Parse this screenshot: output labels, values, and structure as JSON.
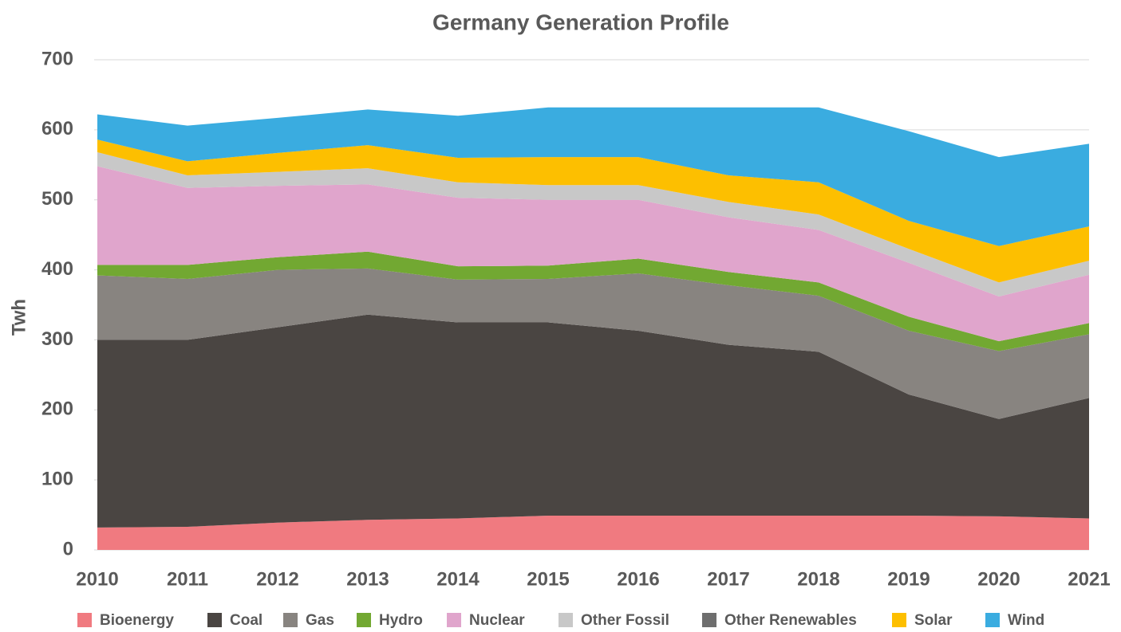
{
  "chart_data": {
    "type": "stacked_area",
    "title": "Germany Generation Profile",
    "y_label": "Twh",
    "categories": [
      "2010",
      "2011",
      "2012",
      "2013",
      "2014",
      "2015",
      "2016",
      "2017",
      "2018",
      "2019",
      "2020",
      "2021"
    ],
    "ylim": [
      0,
      700
    ],
    "yticks": [
      0,
      100,
      200,
      300,
      400,
      500,
      600,
      700
    ],
    "grid": true,
    "legend": "bottom",
    "series": [
      {
        "name": "Bioenergy",
        "color": "#f07a80",
        "values": [
          32,
          33,
          39,
          43,
          45,
          49,
          49,
          49,
          49,
          49,
          48,
          45
        ]
      },
      {
        "name": "Coal",
        "color": "#4a4542",
        "values": [
          268,
          267,
          279,
          293,
          280,
          276,
          264,
          244,
          234,
          173,
          139,
          172
        ]
      },
      {
        "name": "Gas",
        "color": "#888480",
        "values": [
          92,
          87,
          82,
          66,
          61,
          62,
          82,
          85,
          80,
          91,
          97,
          91
        ]
      },
      {
        "name": "Hydro",
        "color": "#72a832",
        "values": [
          15,
          20,
          18,
          24,
          19,
          19,
          21,
          19,
          19,
          20,
          14,
          16
        ]
      },
      {
        "name": "Nuclear",
        "color": "#e0a5cc",
        "values": [
          141,
          110,
          102,
          96,
          98,
          94,
          84,
          78,
          75,
          77,
          64,
          69
        ]
      },
      {
        "name": "Other Fossil",
        "color": "#c8c8c8",
        "values": [
          20,
          18,
          20,
          23,
          22,
          21,
          21,
          22,
          22,
          20,
          20,
          20
        ]
      },
      {
        "name": "Other Renewables",
        "color": "#6e6e6e",
        "values": [
          0,
          0,
          0,
          0,
          0,
          0,
          0,
          0,
          0,
          0,
          0,
          0
        ]
      },
      {
        "name": "Solar",
        "color": "#fdbf00",
        "values": [
          18,
          20,
          27,
          33,
          35,
          40,
          40,
          38,
          46,
          40,
          52,
          49
        ]
      },
      {
        "name": "Wind",
        "color": "#3aace0",
        "values": [
          36,
          51,
          50,
          51,
          60,
          71,
          71,
          97,
          107,
          128,
          127,
          118
        ]
      }
    ]
  }
}
